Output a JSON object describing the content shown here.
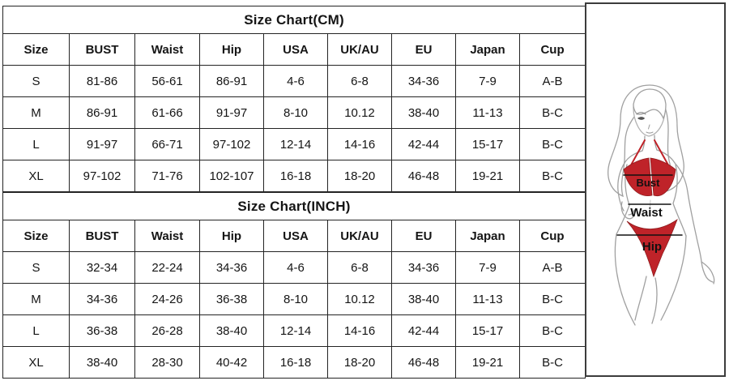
{
  "page": {
    "background": "#ffffff",
    "table_border_color": "#242424",
    "panel_border_color": "#3c3c3c"
  },
  "tables": [
    {
      "title": "Size Chart(CM)",
      "columns": [
        "Size",
        "BUST",
        "Waist",
        "Hip",
        "USA",
        "UK/AU",
        "EU",
        "Japan",
        "Cup"
      ],
      "rows": [
        [
          "S",
          "81-86",
          "56-61",
          "86-91",
          "4-6",
          "6-8",
          "34-36",
          "7-9",
          "A-B"
        ],
        [
          "M",
          "86-91",
          "61-66",
          "91-97",
          "8-10",
          "10.12",
          "38-40",
          "11-13",
          "B-C"
        ],
        [
          "L",
          "91-97",
          "66-71",
          "97-102",
          "12-14",
          "14-16",
          "42-44",
          "15-17",
          "B-C"
        ],
        [
          "XL",
          "97-102",
          "71-76",
          "102-107",
          "16-18",
          "18-20",
          "46-48",
          "19-21",
          "B-C"
        ]
      ]
    },
    {
      "title": "Size Chart(INCH)",
      "columns": [
        "Size",
        "BUST",
        "Waist",
        "Hip",
        "USA",
        "UK/AU",
        "EU",
        "Japan",
        "Cup"
      ],
      "rows": [
        [
          "S",
          "32-34",
          "22-24",
          "34-36",
          "4-6",
          "6-8",
          "34-36",
          "7-9",
          "A-B"
        ],
        [
          "M",
          "34-36",
          "24-26",
          "36-38",
          "8-10",
          "10.12",
          "38-40",
          "11-13",
          "B-C"
        ],
        [
          "L",
          "36-38",
          "26-28",
          "38-40",
          "12-14",
          "14-16",
          "42-44",
          "15-17",
          "B-C"
        ],
        [
          "XL",
          "38-40",
          "28-30",
          "40-42",
          "16-18",
          "18-20",
          "46-48",
          "19-21",
          "B-C"
        ]
      ]
    }
  ],
  "figure": {
    "labels": {
      "bust": "Bust",
      "waist": "Waist",
      "hip": "Hip"
    },
    "bikini_color": "#bf2329",
    "bikini_edge_color": "#8f1d1f",
    "outline_color": "#a0a0a0",
    "measurement_line_color": "#111111"
  }
}
